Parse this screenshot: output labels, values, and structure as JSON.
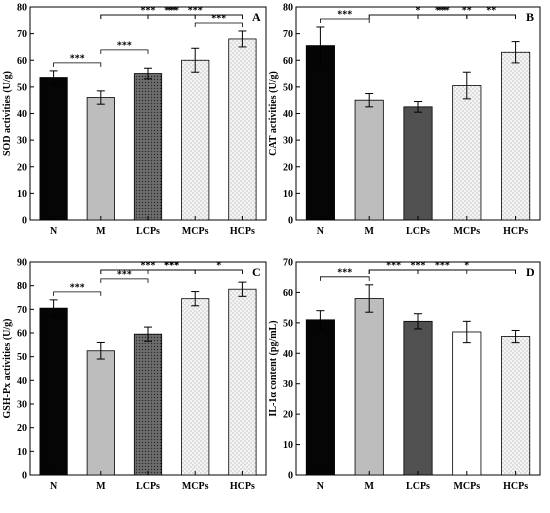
{
  "chart_data": [
    {
      "panel": "A",
      "type": "bar",
      "ylabel": "SOD activities (U/g)",
      "categories": [
        "N",
        "M",
        "LCPs",
        "MCPs",
        "HCPs"
      ],
      "values": [
        53.5,
        46,
        55,
        60,
        68
      ],
      "errors": [
        2.5,
        2.5,
        2,
        4.5,
        3
      ],
      "ylim": [
        0,
        80
      ],
      "yticks": [
        0,
        10,
        20,
        30,
        40,
        50,
        60,
        70,
        80
      ],
      "fills": [
        "black",
        "light",
        "dots-dark",
        "dots-light",
        "dots-light"
      ],
      "significance": [
        {
          "from": 0,
          "to": 1,
          "label": "***"
        },
        {
          "from": 1,
          "to": 2,
          "label": "***"
        },
        {
          "from": 3,
          "to": 4,
          "label": "***"
        },
        {
          "from": 2,
          "to": 3,
          "label": "**"
        },
        {
          "from": 1,
          "to": 3,
          "label": "***"
        },
        {
          "from": 2,
          "to": 4,
          "label": "***"
        },
        {
          "from": 1,
          "to": 4,
          "label": "***"
        }
      ]
    },
    {
      "panel": "B",
      "type": "bar",
      "ylabel": "CAT activities (U/g)",
      "categories": [
        "N",
        "M",
        "LCPs",
        "MCPs",
        "HCPs"
      ],
      "values": [
        65.5,
        45,
        42.5,
        50.5,
        63
      ],
      "errors": [
        7,
        2.5,
        2,
        5,
        4
      ],
      "ylim": [
        0,
        80
      ],
      "yticks": [
        0,
        10,
        20,
        30,
        40,
        50,
        60,
        70,
        80
      ],
      "fills": [
        "black",
        "light",
        "dark",
        "dots-light",
        "dots-light"
      ],
      "significance": [
        {
          "from": 0,
          "to": 1,
          "label": "***"
        },
        {
          "from": 1,
          "to": 4,
          "label": "***"
        },
        {
          "from": 2,
          "to": 4,
          "label": "**"
        },
        {
          "from": 3,
          "to": 4,
          "label": "**"
        },
        {
          "from": 1,
          "to": 3,
          "label": "*"
        },
        {
          "from": 2,
          "to": 3,
          "label": "**"
        }
      ]
    },
    {
      "panel": "C",
      "type": "bar",
      "ylabel": "GSH-Px activities (U/g)",
      "categories": [
        "N",
        "M",
        "LCPs",
        "MCPs",
        "HCPs"
      ],
      "values": [
        70.5,
        52.5,
        59.5,
        74.5,
        78.5
      ],
      "errors": [
        3.5,
        3.5,
        3,
        3,
        3
      ],
      "ylim": [
        0,
        90
      ],
      "yticks": [
        0,
        10,
        20,
        30,
        40,
        50,
        60,
        70,
        80,
        90
      ],
      "fills": [
        "black",
        "light",
        "dots-dark",
        "dots-light",
        "dots-light"
      ],
      "significance": [
        {
          "from": 0,
          "to": 1,
          "label": "***"
        },
        {
          "from": 1,
          "to": 2,
          "label": "***"
        },
        {
          "from": 2,
          "to": 3,
          "label": "***"
        },
        {
          "from": 1,
          "to": 3,
          "label": "***"
        },
        {
          "from": 3,
          "to": 4,
          "label": "*"
        },
        {
          "from": 1,
          "to": 4,
          "label": "***"
        }
      ]
    },
    {
      "panel": "D",
      "type": "bar",
      "ylabel": "IL-1α content (pg/mL)",
      "categories": [
        "N",
        "M",
        "LCPs",
        "MCPs",
        "HCPs"
      ],
      "values": [
        51,
        58,
        50.5,
        47,
        45.5
      ],
      "errors": [
        3,
        4.5,
        2.5,
        3.5,
        2
      ],
      "ylim": [
        0,
        70
      ],
      "yticks": [
        0,
        10,
        20,
        30,
        40,
        50,
        60,
        70
      ],
      "fills": [
        "black",
        "light",
        "dark",
        "white",
        "dots-light"
      ],
      "significance": [
        {
          "from": 0,
          "to": 1,
          "label": "***"
        },
        {
          "from": 1,
          "to": 2,
          "label": "***"
        },
        {
          "from": 1,
          "to": 3,
          "label": "***"
        },
        {
          "from": 1,
          "to": 4,
          "label": "***"
        },
        {
          "from": 2,
          "to": 4,
          "label": "*"
        }
      ]
    }
  ]
}
